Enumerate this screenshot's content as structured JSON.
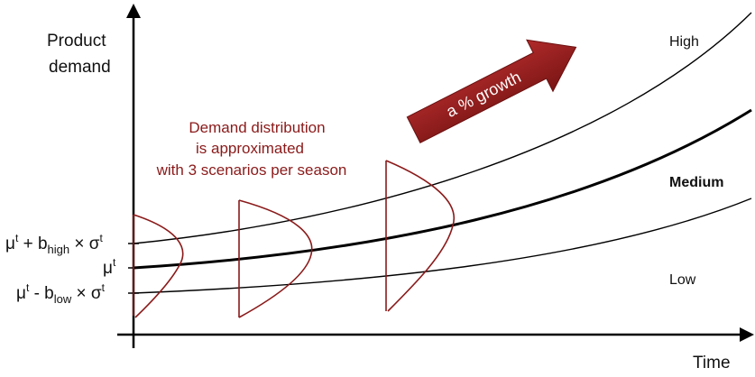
{
  "axes": {
    "y_label_line1": "Product",
    "y_label_line2": "demand",
    "x_label": "Time"
  },
  "scenarios": {
    "high": "High",
    "medium": "Medium",
    "low": "Low"
  },
  "y_ticks": {
    "upper": {
      "base": "μ",
      "base_sup": "t",
      "op": " + b",
      "sub": "high",
      "times": " × σ",
      "times_sup": "t"
    },
    "middle": {
      "base": "μ",
      "base_sup": "t"
    },
    "lower": {
      "base": "μ",
      "base_sup": "t",
      "op": " - b",
      "sub": "low",
      "times": " × σ",
      "times_sup": "t"
    }
  },
  "annotation": {
    "line1": "Demand distribution",
    "line2": "is approximated",
    "line3": "with 3 scenarios per season"
  },
  "growth_arrow": {
    "label": "a % growth"
  },
  "colors": {
    "axis": "#000000",
    "curve": "#000000",
    "distribution": "#8b1a1a",
    "growth_arrow": "#8b1a1a",
    "annotation_text": "#8b1a1a"
  }
}
